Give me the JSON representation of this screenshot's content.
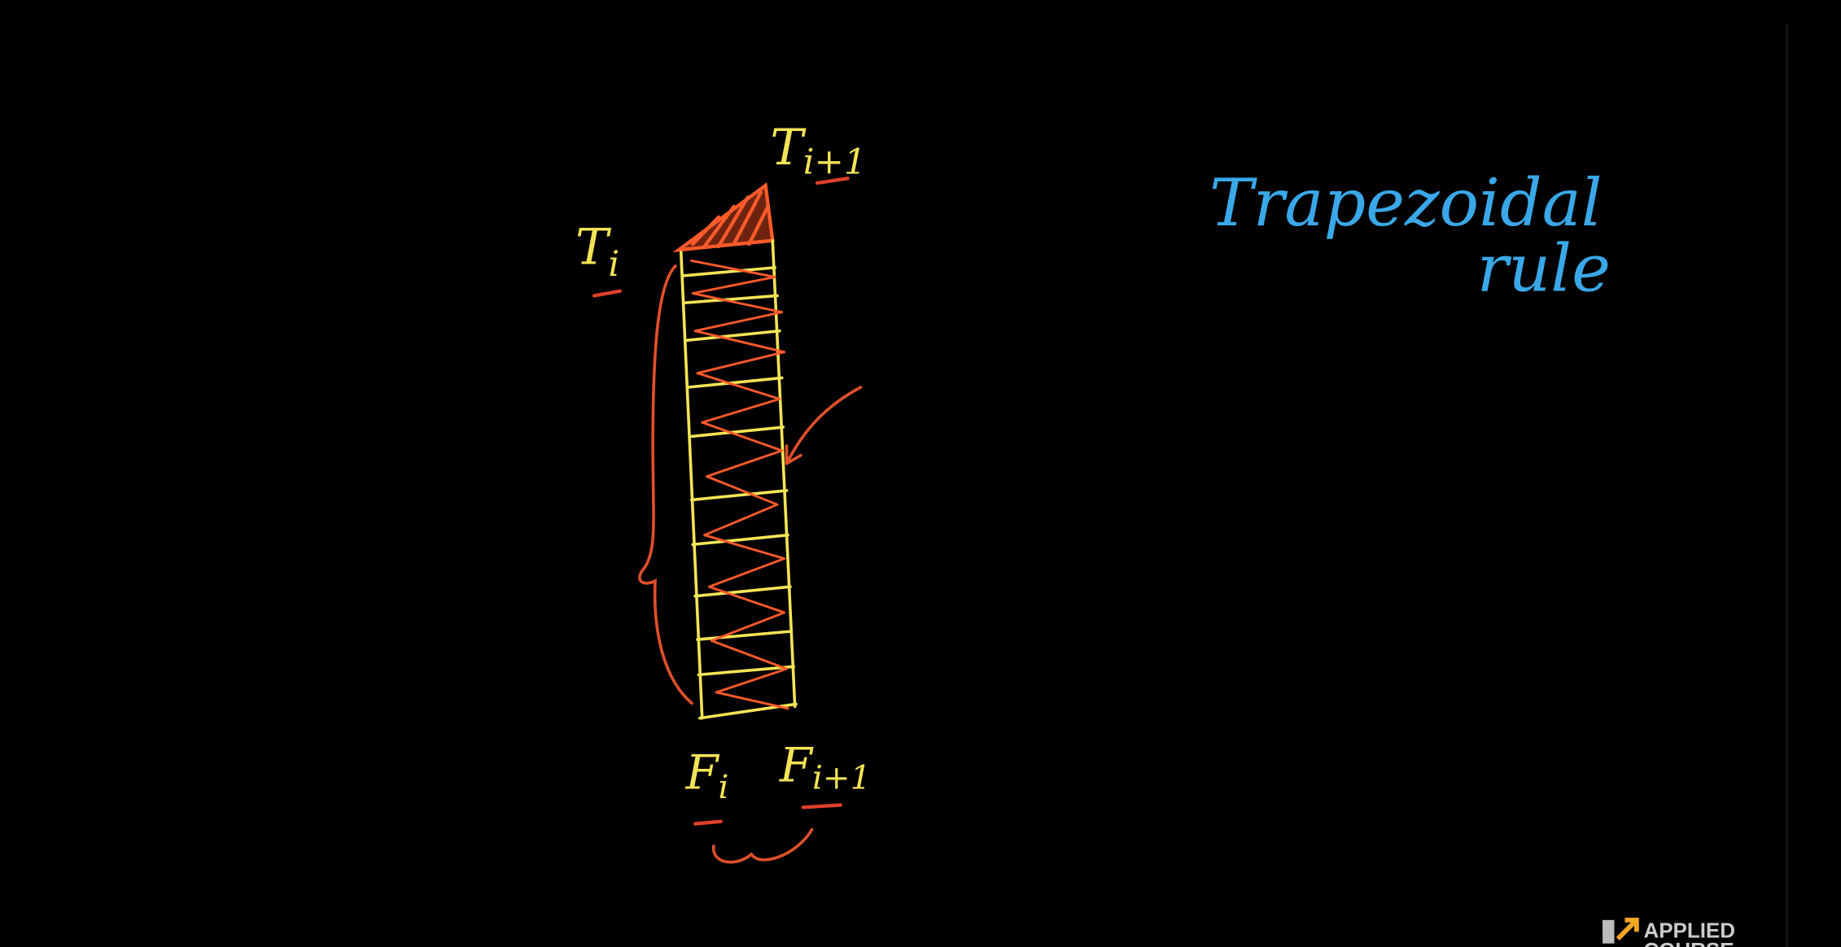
{
  "labels": [
    {
      "base": "T",
      "sub": "i+1"
    },
    {
      "base": "T",
      "sub": "i"
    },
    {
      "base": "F",
      "sub": "i"
    },
    {
      "base": "F",
      "sub": "i+1"
    }
  ],
  "note": [
    "Trapezoidal",
    "rule"
  ],
  "logo": [
    "APPLIED",
    "COURSE"
  ]
}
